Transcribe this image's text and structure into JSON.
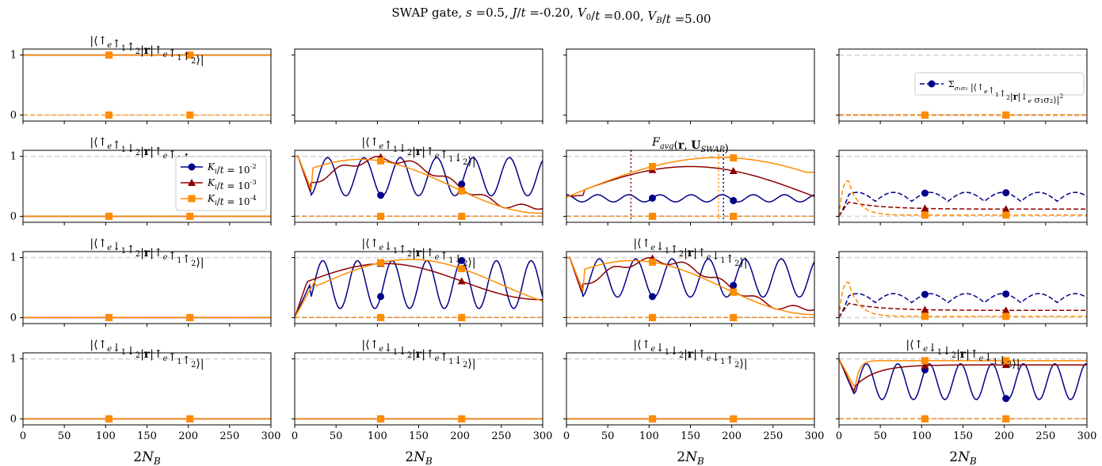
{
  "figure": {
    "suptitle": "SWAP gate, s =0.5, J/t =-0.20, V₀/t =0.00, V_B/t =5.00",
    "xlabel": "2N_B"
  },
  "colors": {
    "k2": "#00008b",
    "k3": "#8b0000",
    "k4": "#ff8c00",
    "ref": "#d3d3d3"
  },
  "chart_data": {
    "type": "line",
    "x_range": [
      0,
      300
    ],
    "y_range": [
      -0.1,
      1.1
    ],
    "x_ticks": [
      "0",
      "50",
      "100",
      "150",
      "200",
      "250",
      "300"
    ],
    "y_ticks": [
      "0",
      "1"
    ],
    "legend": {
      "location": "upper-right",
      "entries": [
        "K_i/t = 10^-2",
        "K_i/t = 10^-3",
        "K_i/t = 10^-4"
      ],
      "colors": [
        "#00008b",
        "#8b0000",
        "#ff8c00"
      ],
      "markers": [
        "circle",
        "triangle",
        "square"
      ]
    },
    "leak_legend": {
      "location": "center-right",
      "entry": "Σ_{σ1σ2} |⟨↑e↑1↑2|r|↓e σ1σ2⟩|²"
    },
    "fidelity_markers_x": {
      "k2": 190,
      "k3": 78,
      "k4": 184
    },
    "panels": [
      {
        "row": 0,
        "col": 0,
        "title": "|⟨↑e↑1↑2|r|↑e↑1↑2⟩|",
        "kind": "flat1"
      },
      {
        "row": 0,
        "col": 1,
        "title": "",
        "kind": "empty"
      },
      {
        "row": 0,
        "col": 2,
        "title": "",
        "kind": "empty"
      },
      {
        "row": 0,
        "col": 3,
        "title": "",
        "kind": "leak_flat"
      },
      {
        "row": 1,
        "col": 0,
        "title": "|⟨↑e↑1↓2|r|↑e↑1↑2⟩|",
        "kind": "flat0"
      },
      {
        "row": 1,
        "col": 1,
        "title": "|⟨↑e↑1↓2|r|↑e↑1↓2⟩|",
        "kind": "osc"
      },
      {
        "row": 1,
        "col": 2,
        "title": "F_avg(r, U_SWAP)",
        "kind": "fidelity"
      },
      {
        "row": 1,
        "col": 3,
        "title": "",
        "kind": "leak"
      },
      {
        "row": 2,
        "col": 0,
        "title": "|⟨↑e↓1↑2|r|↑e↑1↑2⟩|",
        "kind": "flat0"
      },
      {
        "row": 2,
        "col": 1,
        "title": "|⟨↑e↓1↑2|r|↑e↑1↓2⟩|",
        "kind": "osc_rise"
      },
      {
        "row": 2,
        "col": 2,
        "title": "|⟨↑e↓1↑2|r|↑e↓1↑2⟩|",
        "kind": "osc"
      },
      {
        "row": 2,
        "col": 3,
        "title": "",
        "kind": "leak"
      },
      {
        "row": 3,
        "col": 0,
        "title": "|⟨↑e↓1↓2|r|↑e↑1↑2⟩|",
        "kind": "flat0"
      },
      {
        "row": 3,
        "col": 1,
        "title": "|⟨↑e↓1↓2|r|↑e↑1↓2⟩|",
        "kind": "flat0"
      },
      {
        "row": 3,
        "col": 2,
        "title": "|⟨↑e↓1↓2|r|↑e↓1↑2⟩|",
        "kind": "flat0"
      },
      {
        "row": 3,
        "col": 3,
        "title": "|⟨↑e↓1↓2|r|↑e↓1↓2⟩|",
        "kind": "osc_high"
      }
    ]
  }
}
